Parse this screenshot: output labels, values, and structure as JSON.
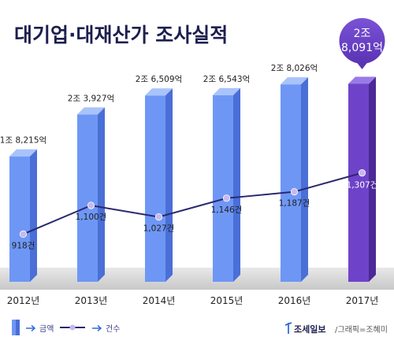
{
  "chart_data": {
    "type": "bar",
    "title": "대기업·대재산가 조사실적",
    "categories": [
      "2012년",
      "2013년",
      "2014년",
      "2015년",
      "2016년",
      "2017년"
    ],
    "series": [
      {
        "name": "금액",
        "unit": "억",
        "values": [
          18215,
          23927,
          26509,
          26543,
          28026,
          28091
        ],
        "labels": [
          "1조 8,215억",
          "2조 3,927억",
          "2조 6,509억",
          "2조 6,543억",
          "2조 8,026억",
          "2조 8,091억"
        ]
      },
      {
        "name": "건수",
        "type": "line",
        "values": [
          918,
          1100,
          1027,
          1146,
          1187,
          1307
        ],
        "labels": [
          "918건",
          "1,100건",
          "1,027건",
          "1,146건",
          "1,187건",
          "1,307건"
        ]
      }
    ],
    "highlight": {
      "index": 5,
      "line1": "2조",
      "line2": "8,091억"
    },
    "legend": {
      "placement": "bottom-left",
      "items": [
        {
          "label": "금액",
          "kind": "bar"
        },
        {
          "label": "건수",
          "kind": "line"
        }
      ]
    },
    "grid": false
  },
  "credit": {
    "brand": "조세일보",
    "text": "/그래픽=조혜미"
  },
  "colors": {
    "bar_front": "#6e97f5",
    "bar_side": "#4a6fd6",
    "bar_top": "#a9c3fb",
    "highlight_front": "#6f43c9",
    "highlight_side": "#4b2996",
    "highlight_top": "#9a7ae6",
    "line": "#2a2770",
    "marker": "#c7b8ee",
    "floor": "#d4d4d4"
  }
}
